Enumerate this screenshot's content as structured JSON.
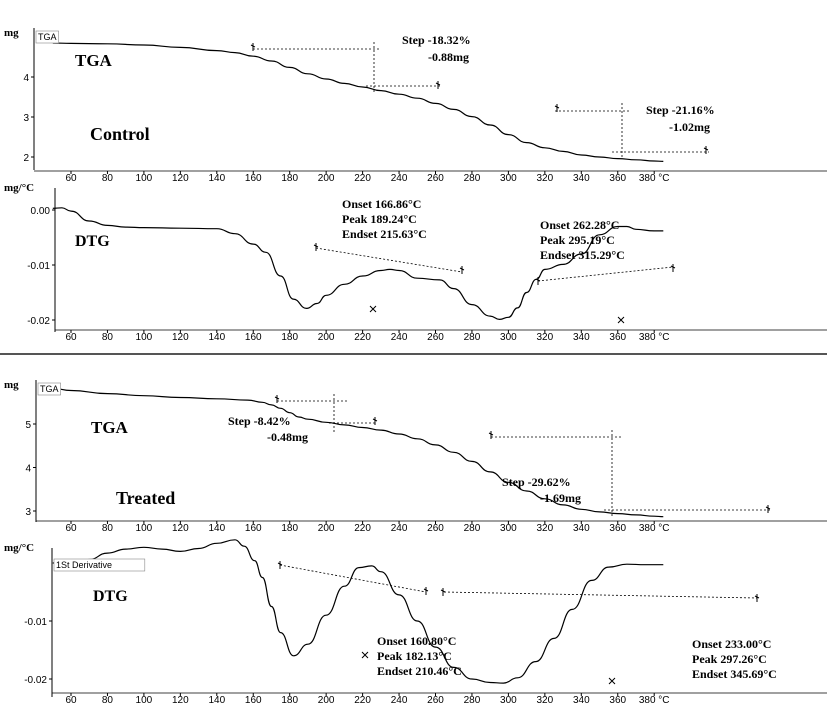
{
  "chart_data": [
    {
      "type": "line",
      "group": "Control",
      "panel": "TGA",
      "label": "Control",
      "ylabel": "mg",
      "legend": "TGA",
      "curve_label": "TGA",
      "yticks": [
        "2",
        "3",
        "4"
      ],
      "ylim": [
        1.6,
        4.95
      ],
      "x": [
        50,
        60,
        80,
        100,
        120,
        140,
        150,
        160,
        170,
        180,
        190,
        200,
        210,
        220,
        230,
        240,
        250,
        260,
        270,
        280,
        290,
        300,
        310,
        320,
        330,
        340,
        350,
        360,
        370,
        380,
        385
      ],
      "y": [
        4.85,
        4.84,
        4.83,
        4.8,
        4.74,
        4.66,
        4.61,
        4.52,
        4.4,
        4.24,
        4.08,
        3.95,
        3.84,
        3.75,
        3.66,
        3.57,
        3.47,
        3.34,
        3.19,
        3.01,
        2.8,
        2.56,
        2.36,
        2.23,
        2.14,
        2.05,
        2.0,
        1.96,
        1.93,
        1.9,
        1.89
      ],
      "steps": [
        {
          "step": "Step  -18.32%",
          "mass": "-0.88mg"
        },
        {
          "step": "Step  -21.16%",
          "mass": "-1.02mg"
        }
      ]
    },
    {
      "type": "line",
      "group": "Control",
      "panel": "DTG",
      "label": "DTG",
      "ylabel": "mg/°C",
      "xticks": [
        "60",
        "80",
        "100",
        "120",
        "140",
        "160",
        "180",
        "200",
        "220",
        "240",
        "260",
        "280",
        "300",
        "320",
        "340",
        "360",
        "380 °C"
      ],
      "yticks": [
        "0.00",
        "-0.01",
        "-0.02"
      ],
      "ylim": [
        -0.0218,
        0.003
      ],
      "x": [
        50,
        55,
        60,
        70,
        80,
        90,
        100,
        120,
        140,
        150,
        160,
        166.86,
        175,
        182,
        189.24,
        195,
        200,
        210,
        220,
        230,
        235,
        240,
        250,
        262.28,
        270,
        280,
        290,
        295.19,
        300,
        305,
        310,
        315.29,
        320,
        330,
        340,
        350,
        360,
        365,
        370,
        380,
        385
      ],
      "y": [
        0.0003,
        0.0004,
        -0.0002,
        -0.002,
        -0.0028,
        -0.0031,
        -0.0032,
        -0.0033,
        -0.0034,
        -0.0043,
        -0.0062,
        -0.0077,
        -0.012,
        -0.0162,
        -0.0179,
        -0.017,
        -0.0155,
        -0.0135,
        -0.012,
        -0.011,
        -0.0108,
        -0.011,
        -0.0124,
        -0.0127,
        -0.0143,
        -0.0172,
        -0.0193,
        -0.0199,
        -0.0195,
        -0.0178,
        -0.015,
        -0.0126,
        -0.0108,
        -0.0099,
        -0.008,
        -0.0045,
        -0.003,
        -0.003,
        -0.0035,
        -0.0038,
        -0.0038
      ],
      "annotations": [
        {
          "onset": "Onset  166.86°C",
          "peak": "Peak   189.24°C",
          "endset": "Endset 215.63°C"
        },
        {
          "onset": "Onset  262.28°C",
          "peak": "Peak   295.19°C",
          "endset": "Endset 315.29°C"
        }
      ]
    },
    {
      "type": "line",
      "group": "Treated",
      "panel": "TGA",
      "label": "Treated",
      "ylabel": "mg",
      "legend": "TGA",
      "curve_label": "TGA",
      "xticks": [
        "60",
        "80",
        "100",
        "120",
        "140",
        "160",
        "180",
        "200",
        "220",
        "240",
        "260",
        "280",
        "300",
        "320",
        "340",
        "360",
        "380 °C"
      ],
      "yticks": [
        "3",
        "4",
        "5"
      ],
      "ylim": [
        2.6,
        5.95
      ],
      "x": [
        50,
        60,
        80,
        100,
        120,
        140,
        157,
        165,
        170,
        175,
        180,
        185,
        190,
        200,
        210,
        220,
        230,
        240,
        250,
        260,
        270,
        280,
        290,
        300,
        310,
        320,
        330,
        340,
        350,
        360,
        370,
        380,
        385
      ],
      "y": [
        5.82,
        5.77,
        5.7,
        5.65,
        5.61,
        5.58,
        5.55,
        5.5,
        5.44,
        5.36,
        5.26,
        5.16,
        5.11,
        5.04,
        4.98,
        4.92,
        4.86,
        4.77,
        4.66,
        4.52,
        4.35,
        4.14,
        3.9,
        3.66,
        3.46,
        3.28,
        3.14,
        3.04,
        2.98,
        2.94,
        2.91,
        2.88,
        2.87
      ],
      "steps": [
        {
          "step": "Step    -8.42%",
          "mass": "-0.48mg"
        },
        {
          "step": "Step    -29.62%",
          "mass": "-1.69mg"
        }
      ]
    },
    {
      "type": "line",
      "group": "Treated",
      "panel": "DTG",
      "label": "DTG",
      "ylabel": "mg/°C",
      "legend": "1St Derivative",
      "xticks": [
        "60",
        "80",
        "100",
        "120",
        "140",
        "160",
        "180",
        "200",
        "220",
        "240",
        "260",
        "280",
        "300",
        "320",
        "340",
        "360",
        "380 °C"
      ],
      "yticks": [
        "-0.01",
        "-0.02"
      ],
      "ylim": [
        -0.0218,
        0.0046
      ],
      "x": [
        50,
        60,
        70,
        80,
        90,
        100,
        110,
        120,
        130,
        140,
        150,
        155,
        160.8,
        165,
        170,
        175,
        182.13,
        190,
        200,
        210,
        218,
        225,
        230,
        240,
        250,
        260,
        270,
        280,
        290,
        297.26,
        305,
        315,
        325,
        335,
        345.69,
        355,
        365,
        375,
        385
      ],
      "y": [
        0.0,
        0.0001,
        0.0006,
        0.0017,
        0.0024,
        0.0027,
        0.0024,
        0.002,
        0.0025,
        0.0034,
        0.004,
        0.0029,
        0.0004,
        -0.0025,
        -0.0075,
        -0.012,
        -0.016,
        -0.014,
        -0.009,
        -0.004,
        -0.0008,
        -0.0005,
        -0.0015,
        -0.0055,
        -0.01,
        -0.0145,
        -0.018,
        -0.02,
        -0.0206,
        -0.0207,
        -0.0198,
        -0.017,
        -0.013,
        -0.008,
        -0.003,
        -0.0007,
        -0.0002,
        -0.0003,
        -0.0003
      ],
      "annotations": [
        {
          "onset": "Onset  160.80°C",
          "peak": "Peak    182.13°C",
          "endset": "Endset  210.46°C"
        },
        {
          "onset": "Onset   233.00°C",
          "peak": "Peak    297.26°C",
          "endset": "Endset  345.69°C"
        }
      ]
    }
  ]
}
